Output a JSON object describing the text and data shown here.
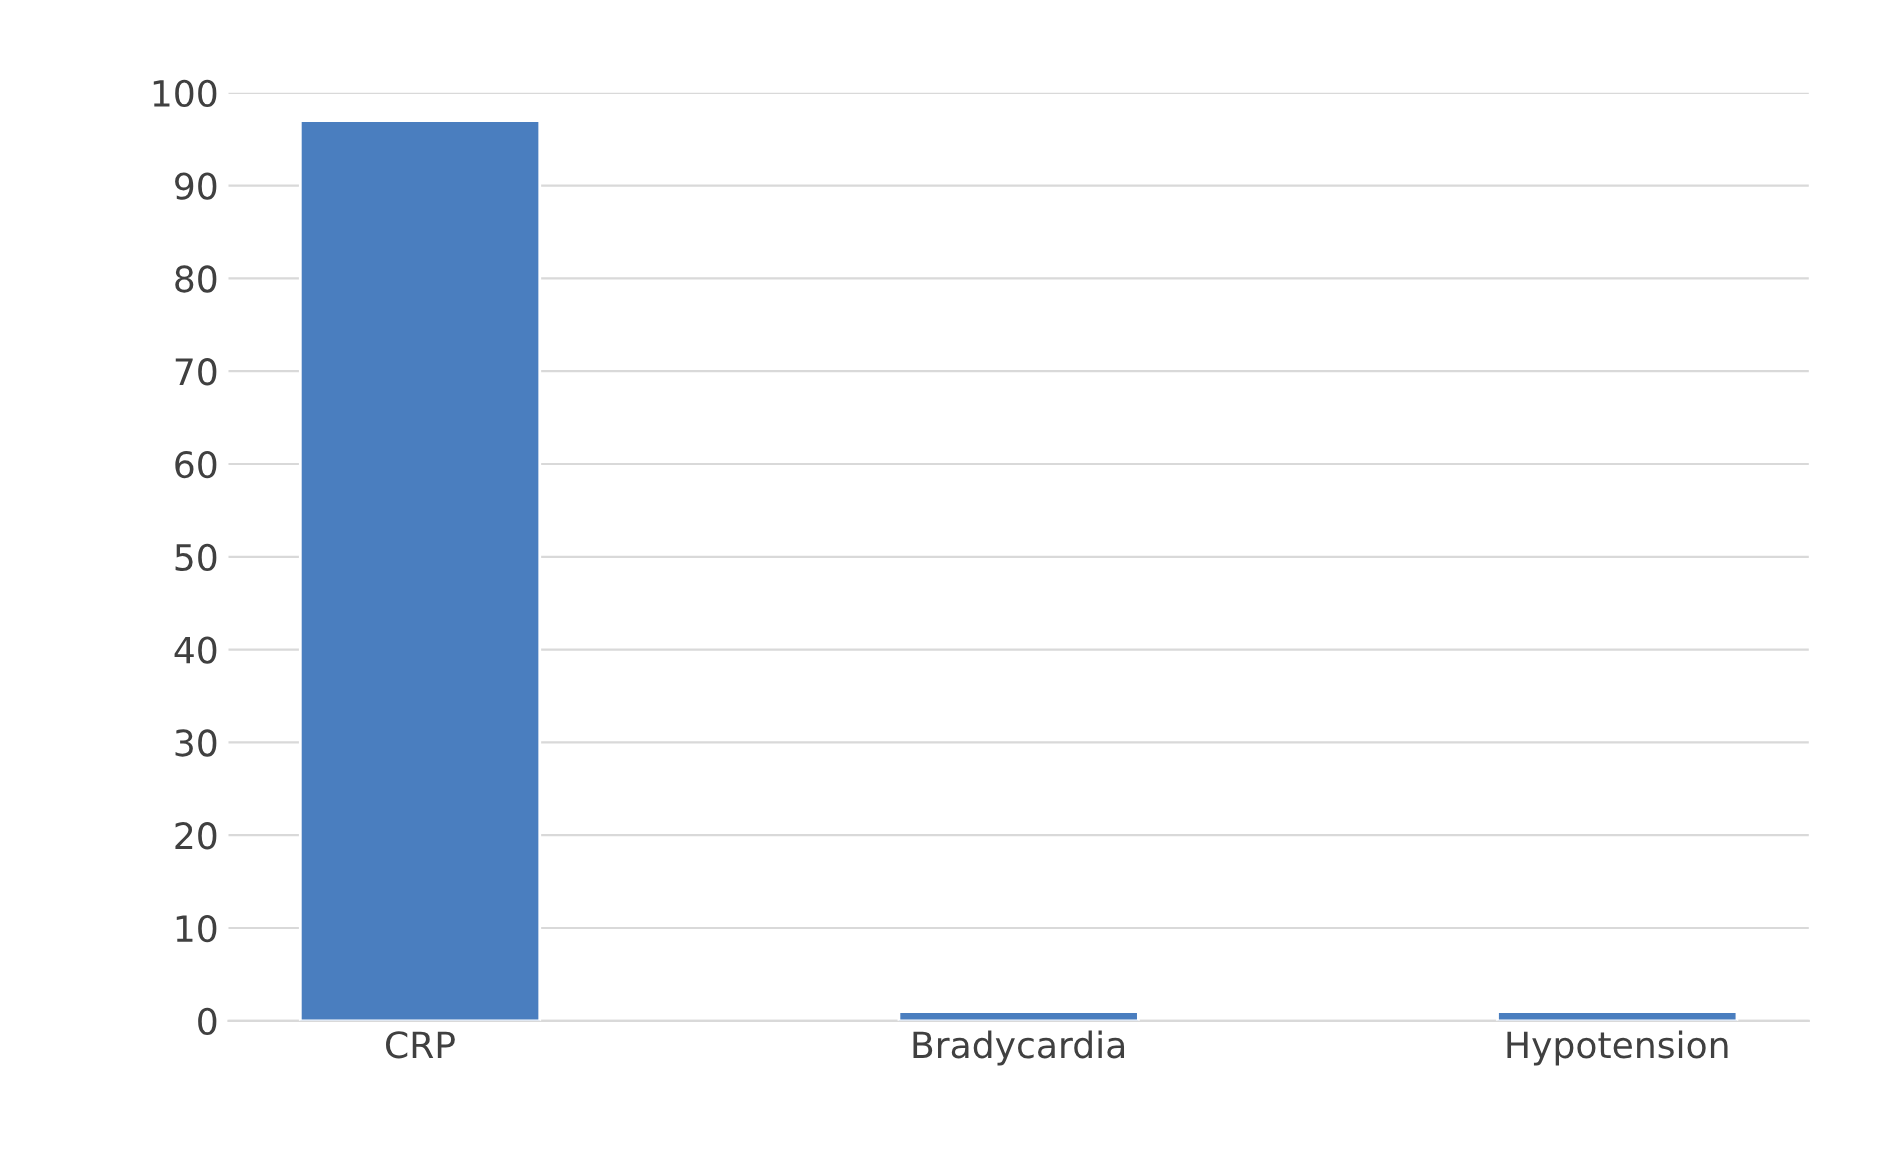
{
  "chart_data": {
    "type": "bar",
    "categories": [
      "CRP",
      "Bradycardia",
      "Hypotension"
    ],
    "values": [
      97,
      1,
      1
    ],
    "color": "#4a7ebf",
    "ylim": [
      0,
      100
    ],
    "yticks": [
      0,
      10,
      20,
      30,
      40,
      50,
      60,
      70,
      80,
      90,
      100
    ],
    "grid": "y"
  }
}
